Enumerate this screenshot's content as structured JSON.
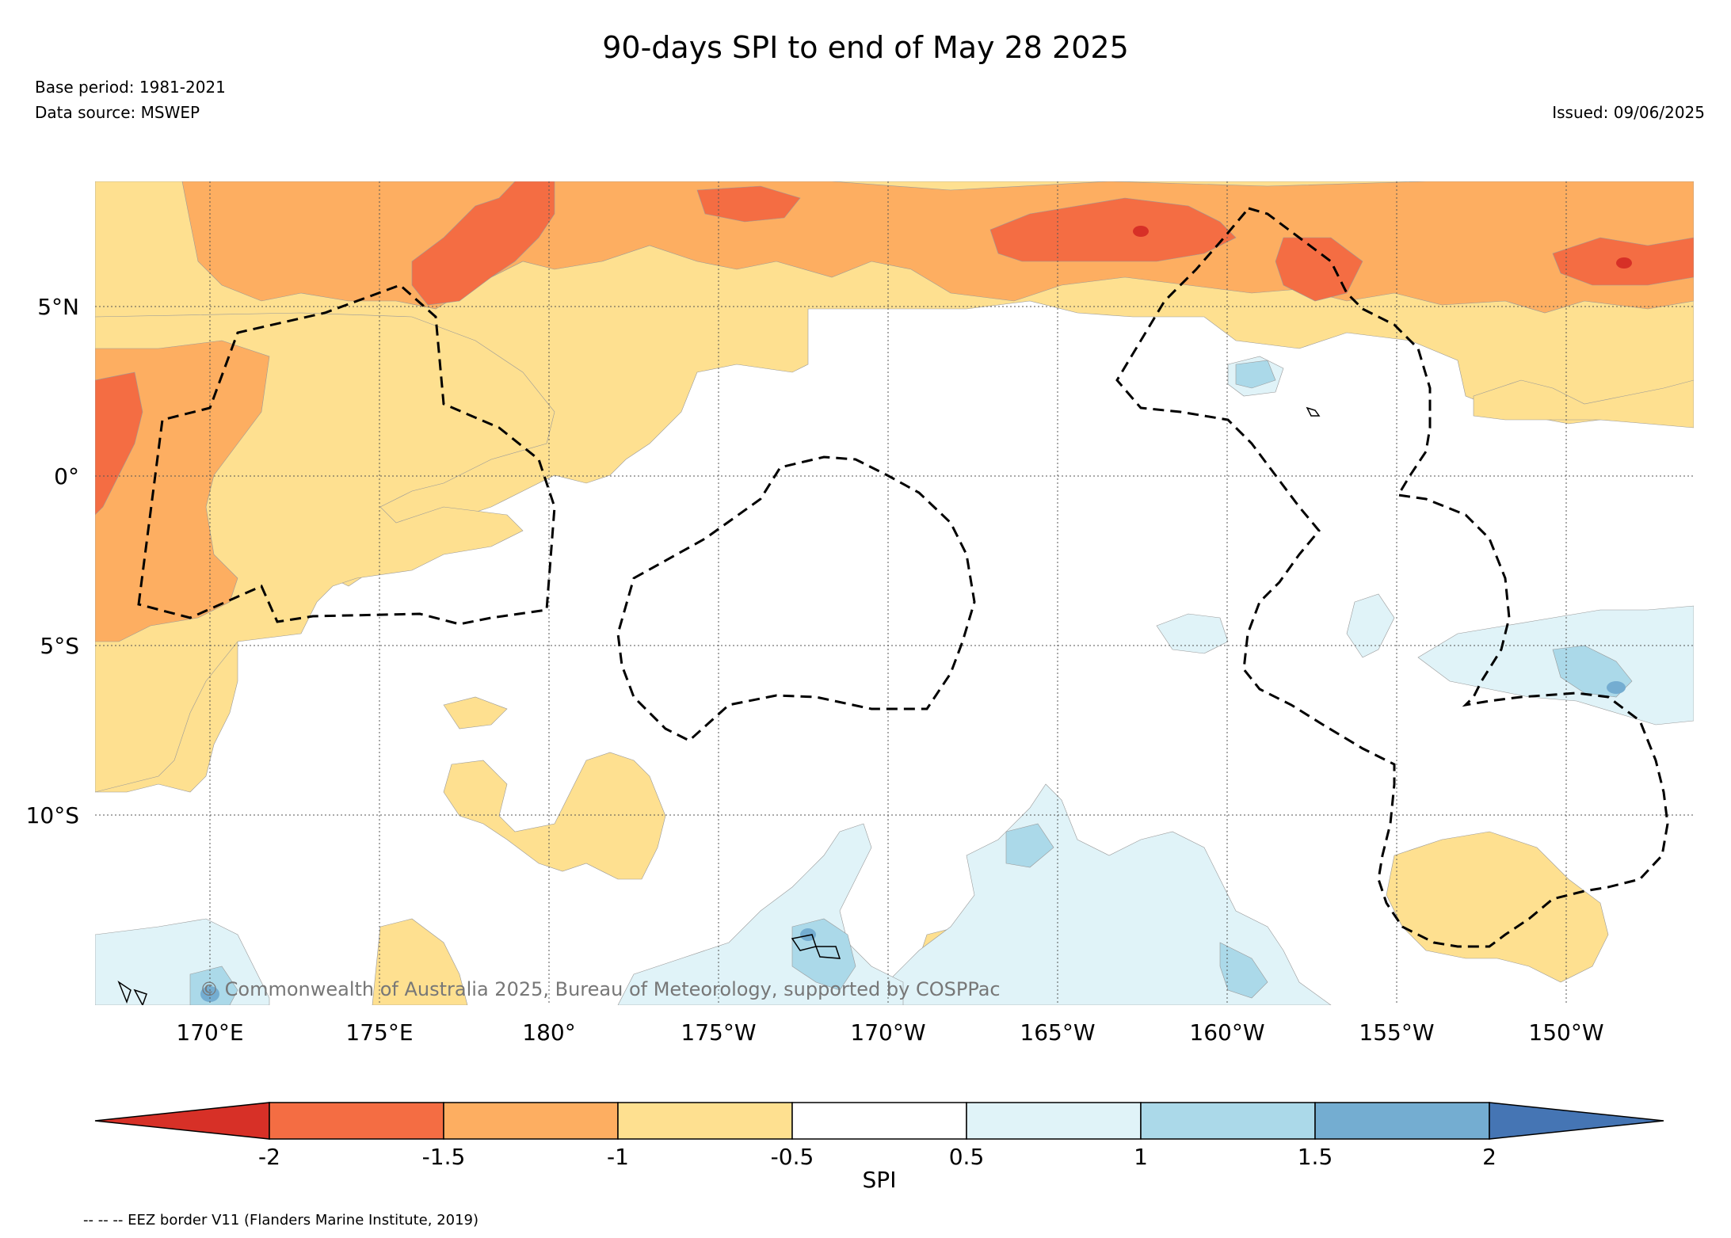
{
  "header": {
    "title": "90-days SPI to end of May 28 2025",
    "base_period": "Base period: 1981-2021",
    "data_source": "Data source: MSWEP",
    "issued": "Issued: 09/06/2025"
  },
  "map": {
    "lat_labels": [
      "5°N",
      "0°",
      "5°S",
      "10°S"
    ],
    "lon_labels": [
      "170°E",
      "175°E",
      "180°",
      "175°W",
      "170°W",
      "165°W",
      "160°W",
      "155°W",
      "150°W"
    ],
    "copyright": "© Commonwealth of Australia 2025, Bureau of Meteorology, supported by COSPPac",
    "icons": [
      "eez-border-dashed",
      "land-outline"
    ]
  },
  "colorbar": {
    "label": "SPI",
    "ticks": [
      "-2",
      "-1.5",
      "-1",
      "-0.5",
      "0.5",
      "1",
      "1.5",
      "2"
    ],
    "colors": {
      "below_-2": "#d73027",
      "-2_to_-1.5": "#f46d43",
      "-1.5_to_-1": "#fdae61",
      "-1_to_-0.5": "#fee090",
      "-0.5_to_0.5": "#ffffff",
      "0.5_to_1": "#e0f3f8",
      "1_to_1.5": "#abd9e9",
      "1.5_to_2": "#74add1",
      "above_2": "#4575b4"
    }
  },
  "footnote": "-- -- -- EEZ border V11 (Flanders Marine Institute, 2019)"
}
